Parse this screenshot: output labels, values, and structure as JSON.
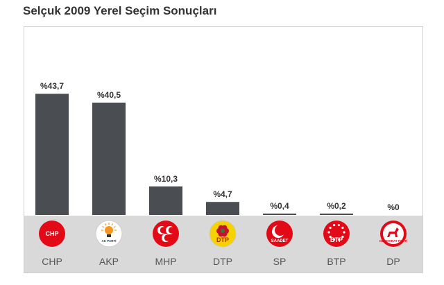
{
  "page": {
    "title": "Selçuk 2009 Yerel Seçim Sonuçları"
  },
  "chart_data": {
    "type": "bar",
    "title": "Selçuk 2009 Yerel Seçim Sonuçları",
    "xlabel": "",
    "ylabel": "",
    "categories": [
      "CHP",
      "AKP",
      "MHP",
      "DTP",
      "SP",
      "BTP",
      "DP"
    ],
    "values": [
      43.7,
      40.5,
      10.3,
      4.7,
      0.4,
      0.2,
      0
    ],
    "labels": [
      "%43,7",
      "%40,5",
      "%10,3",
      "%4,7",
      "%0,4",
      "%0,2",
      "%0"
    ],
    "ylim": [
      0,
      50
    ],
    "grid": false,
    "bar_color": "#4a4d51",
    "logos": [
      {
        "party": "CHP",
        "text": "CHP",
        "color": "#e30a17",
        "icon": "chp-six-arrows-logo"
      },
      {
        "party": "AKP",
        "text": "AK PARTİ",
        "color": "#f7941d",
        "icon": "akp-light-bulb-logo"
      },
      {
        "party": "MHP",
        "text": "",
        "color": "#e30a17",
        "icon": "mhp-three-crescents-logo"
      },
      {
        "party": "DTP",
        "text": "DTP",
        "color": "#f6d200",
        "icon": "dtp-flower-logo"
      },
      {
        "party": "SP",
        "text": "SAADET",
        "color": "#e30a17",
        "icon": "sp-crescent-star-logo"
      },
      {
        "party": "BTP",
        "text": "BTP",
        "color": "#e30a17",
        "icon": "btp-stars-logo"
      },
      {
        "party": "DP",
        "text": "DEMOKRAT PARTİ",
        "color": "#e30a17",
        "icon": "dp-horse-logo"
      }
    ]
  }
}
